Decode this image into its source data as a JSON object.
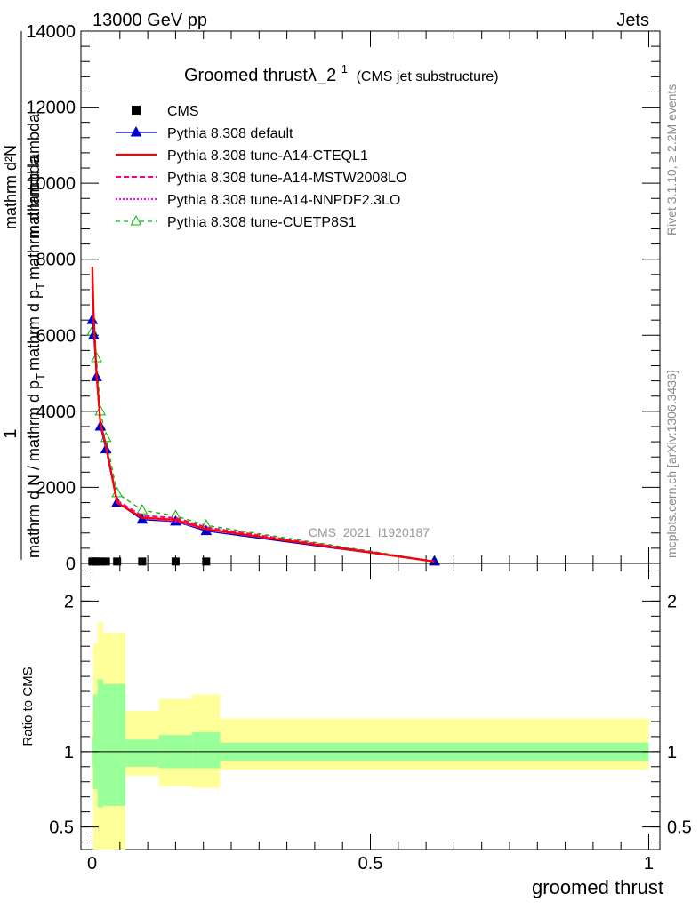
{
  "header": {
    "left": "13000 GeV pp",
    "right": "Jets"
  },
  "title": {
    "main": "Groomed thrustλ_2",
    "sup": "1",
    "sub": "(CMS jet substructure)"
  },
  "side_labels": {
    "rivet": "Rivet 3.1.10, ≥ 2.2M events",
    "arxiv": "mcplots.cern.ch [arXiv:1306.3436]"
  },
  "watermark": "CMS_2021_I1920187",
  "y_label_main": {
    "one": "1",
    "frac_top": "mathrm d²N",
    "frac_bottom_1": "mathrm d N / mathrm d p",
    "frac_bottom_2": "T",
    "frac_bottom_3": "mathrm d p",
    "frac_bottom_4": "T",
    "frac_bottom_5": "mathrm d lambda",
    "overlap_a": "mathrm d lambda",
    "overlap_b": "T",
    "overlap_c": "mathrm d p",
    "overlap_d": "mathrm d N / mathrm d p"
  },
  "y_label_ratio": "Ratio to CMS",
  "x_label": "groomed thrust",
  "colors": {
    "cms": "#000000",
    "default": "#0000cc",
    "cteql1": "#ff0000",
    "mstw": "#ff0080",
    "nnpdf": "#ff00ff",
    "cuetp": "#00bb00",
    "band_outer": "#ffff99",
    "band_inner": "#99ff99"
  },
  "chart_data": [
    {
      "type": "line",
      "panel": "main",
      "xlim": [
        -0.02,
        1.02
      ],
      "ylim": [
        0,
        14000
      ],
      "y_ticks": [
        0,
        2000,
        4000,
        6000,
        8000,
        10000,
        12000,
        14000
      ],
      "y_tick_labels": [
        "0",
        "2000",
        "4000",
        "6000",
        "8000",
        "10000",
        "12000",
        "14000"
      ],
      "legend": [
        {
          "name": "CMS",
          "key": "cms"
        },
        {
          "name": "Pythia 8.308 default",
          "key": "default"
        },
        {
          "name": "Pythia 8.308 tune-A14-CTEQL1",
          "key": "cteql1"
        },
        {
          "name": "Pythia 8.308 tune-A14-MSTW2008LO",
          "key": "mstw"
        },
        {
          "name": "Pythia 8.308 tune-A14-NNPDF2.3LO",
          "key": "nnpdf"
        },
        {
          "name": "Pythia 8.308 tune-CUETP8S1",
          "key": "cuetp"
        }
      ],
      "cms_points": {
        "x": [
          0.0005,
          0.003,
          0.008,
          0.015,
          0.025,
          0.045,
          0.09,
          0.15,
          0.205
        ],
        "y": [
          50,
          50,
          50,
          50,
          50,
          50,
          50,
          50,
          50
        ]
      },
      "series": [
        {
          "key": "default",
          "x": [
            0.0005,
            0.003,
            0.008,
            0.015,
            0.025,
            0.045,
            0.09,
            0.15,
            0.205,
            0.615
          ],
          "y": [
            6400,
            6000,
            4900,
            3600,
            3000,
            1600,
            1150,
            1100,
            850,
            50
          ]
        },
        {
          "key": "cteql1",
          "x": [
            0.0005,
            0.003,
            0.008,
            0.015,
            0.025,
            0.045,
            0.09,
            0.15,
            0.205,
            0.615
          ],
          "y": [
            7800,
            6500,
            5000,
            3700,
            3100,
            1600,
            1200,
            1150,
            900,
            50
          ]
        },
        {
          "key": "mstw",
          "x": [
            0.0005,
            0.003,
            0.008,
            0.015,
            0.025,
            0.045,
            0.09,
            0.15,
            0.205,
            0.615
          ],
          "y": [
            7500,
            6400,
            5000,
            3700,
            3100,
            1650,
            1250,
            1200,
            950,
            50
          ]
        },
        {
          "key": "nnpdf",
          "x": [
            0.0005,
            0.003,
            0.008,
            0.015,
            0.025,
            0.045,
            0.09,
            0.15,
            0.205,
            0.615
          ],
          "y": [
            7300,
            6300,
            5000,
            3650,
            3050,
            1600,
            1200,
            1100,
            900,
            50
          ]
        },
        {
          "key": "cuetp",
          "x": [
            0.0005,
            0.003,
            0.008,
            0.015,
            0.025,
            0.045,
            0.09,
            0.15,
            0.205,
            0.615
          ],
          "y": [
            6100,
            6000,
            5400,
            4000,
            3300,
            1850,
            1400,
            1250,
            1000,
            60
          ]
        }
      ]
    },
    {
      "type": "area",
      "panel": "ratio",
      "xlim": [
        -0.02,
        1.02
      ],
      "ylim": [
        0.35,
        2.25
      ],
      "y_ticks": [
        0.5,
        1,
        2
      ],
      "y_tick_labels": [
        "0.5",
        "1",
        "2"
      ],
      "x_ticks": [
        0,
        0.5,
        1
      ],
      "x_tick_labels": [
        "0",
        "0.5",
        "1"
      ],
      "reference_line": 1,
      "bins": [
        {
          "lo": 0.0,
          "hi": 0.002,
          "inner": [
            0.9,
            1.1
          ],
          "outer": [
            0.75,
            1.25
          ]
        },
        {
          "lo": 0.002,
          "hi": 0.01,
          "inner": [
            0.75,
            1.38
          ],
          "outer": [
            0.35,
            1.72
          ]
        },
        {
          "lo": 0.01,
          "hi": 0.02,
          "inner": [
            0.63,
            1.48
          ],
          "outer": [
            0.35,
            1.86
          ]
        },
        {
          "lo": 0.02,
          "hi": 0.06,
          "inner": [
            0.64,
            1.45
          ],
          "outer": [
            0.35,
            1.79
          ]
        },
        {
          "lo": 0.06,
          "hi": 0.12,
          "inner": [
            0.9,
            1.08
          ],
          "outer": [
            0.84,
            1.27
          ]
        },
        {
          "lo": 0.12,
          "hi": 0.18,
          "inner": [
            0.89,
            1.11
          ],
          "outer": [
            0.77,
            1.35
          ]
        },
        {
          "lo": 0.18,
          "hi": 0.23,
          "inner": [
            0.89,
            1.13
          ],
          "outer": [
            0.76,
            1.38
          ]
        },
        {
          "lo": 0.23,
          "hi": 1.0,
          "inner": [
            0.94,
            1.06
          ],
          "outer": [
            0.88,
            1.22
          ]
        }
      ]
    }
  ]
}
